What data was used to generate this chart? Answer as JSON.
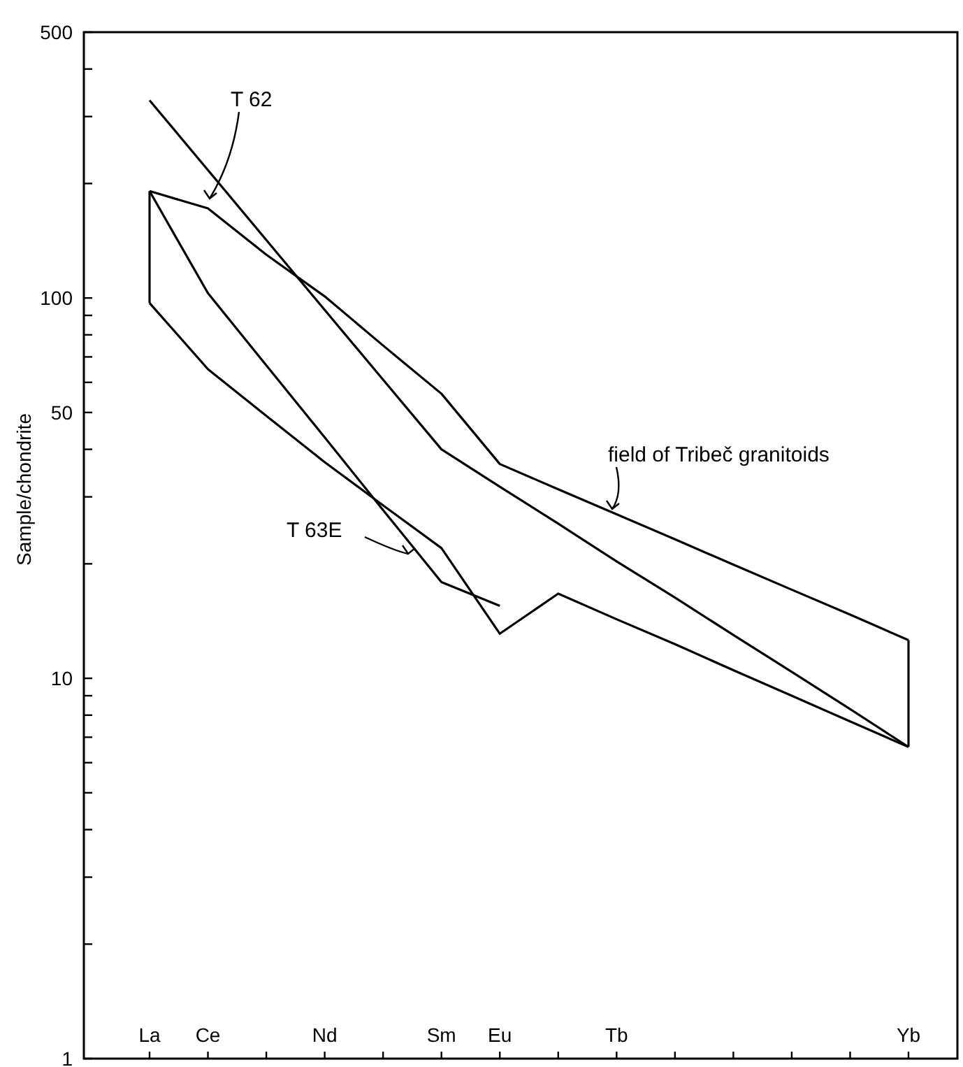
{
  "chart_data": {
    "type": "line",
    "ylabel": "Sample/chondrite",
    "categories": [
      "La",
      "Ce",
      null,
      "Nd",
      null,
      "Sm",
      "Eu",
      null,
      "Tb",
      null,
      null,
      null,
      null,
      "Yb"
    ],
    "series": [
      {
        "color": "#000000",
        "values": [
          331,
          217,
          142,
          93,
          61,
          40,
          31.9,
          25.5,
          20.3,
          16.3,
          13,
          10.4,
          8.3,
          6.6
        ]
      },
      {
        "color": "#000000",
        "values": [
          191,
          103,
          66.5,
          43,
          27.7,
          17.9,
          15.5,
          null,
          null,
          null,
          null,
          null,
          null,
          null
        ]
      },
      {
        "color": "#000000",
        "values": [
          191,
          172,
          130,
          101,
          75,
          56,
          36.6,
          31.4,
          27,
          23.2,
          19.9,
          17.1,
          14.7,
          12.6
        ],
        "errors": [
          [
            97,
            191
          ],
          null,
          null,
          null,
          null,
          null,
          null,
          null,
          null,
          null,
          null,
          null,
          null,
          [
            6.6,
            12.6
          ]
        ]
      },
      {
        "color": "#000000",
        "values": [
          97,
          65,
          49,
          37,
          28.5,
          22,
          13.1,
          16.7,
          14.3,
          12.3,
          10.5,
          9,
          7.7,
          6.6
        ]
      }
    ],
    "log": true,
    "ylim": [
      1,
      500
    ],
    "yticks": [
      1,
      {
        "value": 2,
        "label": null
      },
      {
        "value": 3,
        "label": null
      },
      {
        "value": 4,
        "label": null
      },
      {
        "value": 5,
        "label": null
      },
      {
        "value": 6,
        "label": null
      },
      {
        "value": 7,
        "label": null
      },
      {
        "value": 8,
        "label": null
      },
      {
        "value": 9,
        "label": null
      },
      10,
      {
        "value": 20,
        "label": null
      },
      {
        "value": 30,
        "label": null
      },
      {
        "value": 40,
        "label": null
      },
      50,
      {
        "value": 60,
        "label": null
      },
      {
        "value": 70,
        "label": null
      },
      {
        "value": 80,
        "label": null
      },
      {
        "value": 90,
        "label": null
      },
      100,
      {
        "value": 200,
        "label": null
      },
      {
        "value": 300,
        "label": null
      },
      {
        "value": 400,
        "label": null
      },
      500
    ],
    "annotations": [
      "T 62",
      "T 63E",
      "field of Tribeč granitoids"
    ]
  }
}
